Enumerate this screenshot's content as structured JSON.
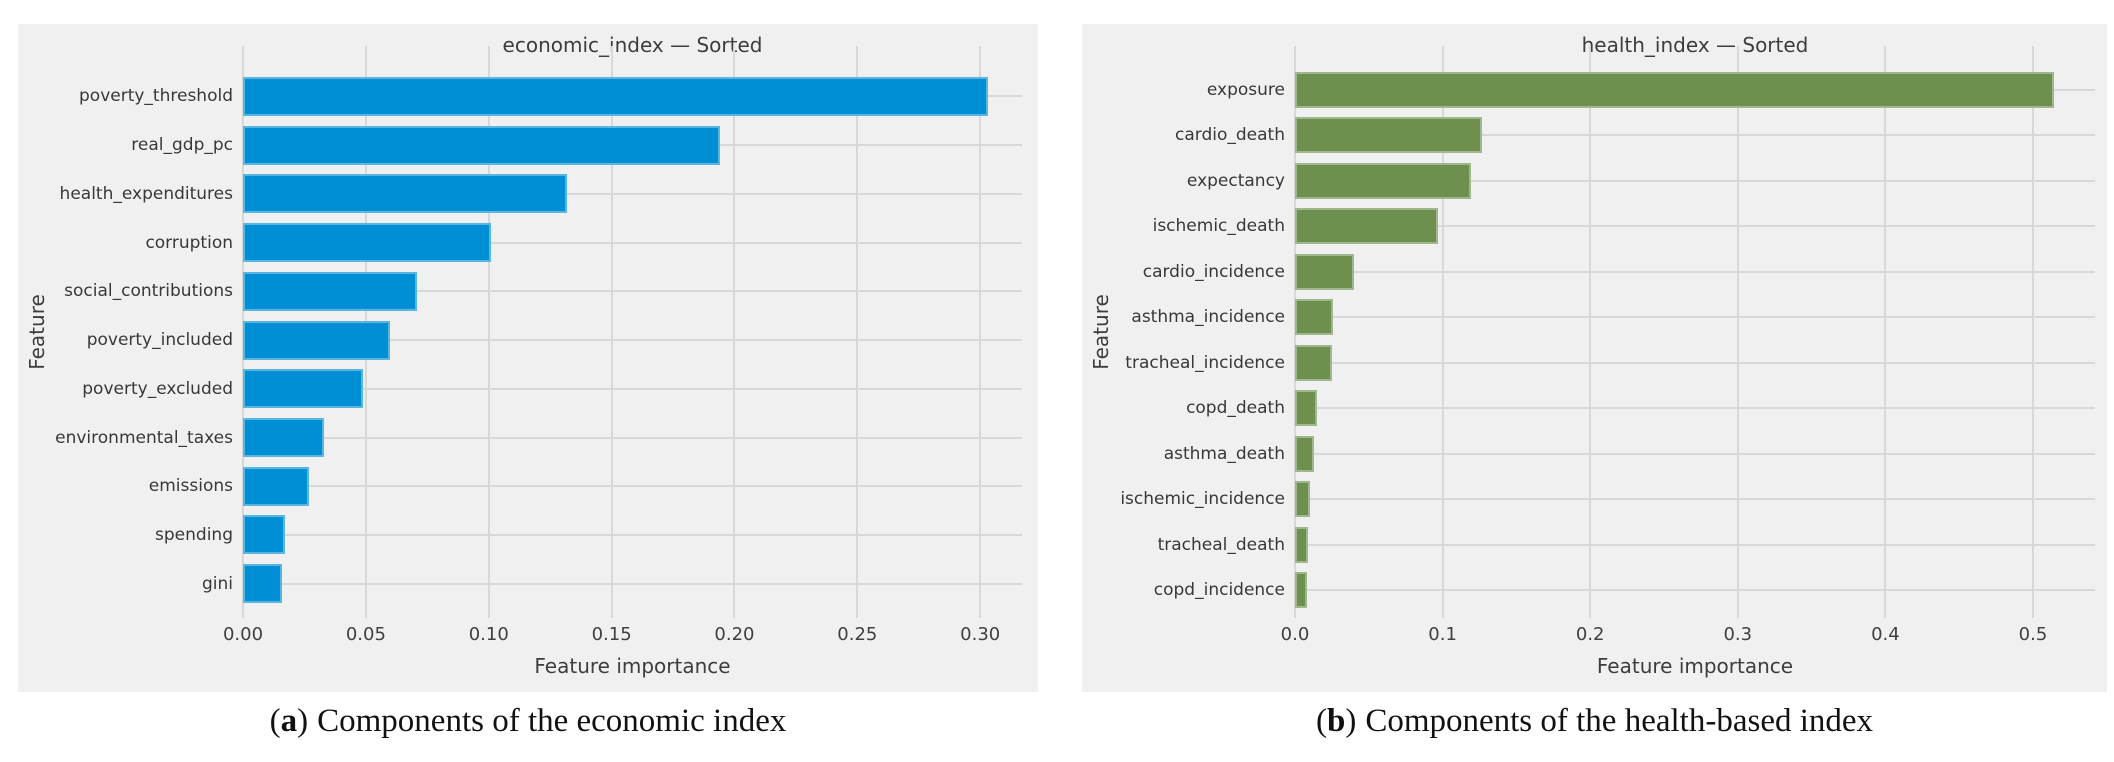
{
  "chart_data": [
    {
      "type": "bar",
      "orientation": "horizontal",
      "title": "economic_index — Sorted",
      "xlabel": "Feature importance",
      "ylabel": "Feature",
      "categories": [
        "poverty_threshold",
        "real_gdp_pc",
        "health_expenditures",
        "corruption",
        "social_contributions",
        "poverty_included",
        "poverty_excluded",
        "environmental_taxes",
        "emissions",
        "spending",
        "gini"
      ],
      "values": [
        0.303,
        0.194,
        0.132,
        0.101,
        0.071,
        0.06,
        0.049,
        0.033,
        0.027,
        0.017,
        0.016
      ],
      "xticks": [
        0.0,
        0.05,
        0.1,
        0.15,
        0.2,
        0.25,
        0.3
      ],
      "xtick_labels": [
        "0.00",
        "0.05",
        "0.10",
        "0.15",
        "0.20",
        "0.25",
        "0.30"
      ],
      "xlim": [
        0,
        0.317
      ],
      "bar_color": "#008fd5",
      "panel_bg": "#f0f0f0",
      "grid_color": "#d8d8d8",
      "grid": "on",
      "legend": "none"
    },
    {
      "type": "bar",
      "orientation": "horizontal",
      "title": "health_index — Sorted",
      "xlabel": "Feature importance",
      "ylabel": "Feature",
      "categories": [
        "exposure",
        "cardio_death",
        "expectancy",
        "ischemic_death",
        "cardio_incidence",
        "asthma_incidence",
        "tracheal_incidence",
        "copd_death",
        "asthma_death",
        "ischemic_incidence",
        "tracheal_death",
        "copd_incidence"
      ],
      "values": [
        0.514,
        0.127,
        0.119,
        0.097,
        0.04,
        0.026,
        0.025,
        0.015,
        0.013,
        0.01,
        0.009,
        0.008
      ],
      "xticks": [
        0.0,
        0.1,
        0.2,
        0.3,
        0.4,
        0.5
      ],
      "xtick_labels": [
        "0.0",
        "0.1",
        "0.2",
        "0.3",
        "0.4",
        "0.5"
      ],
      "xlim": [
        0,
        0.542
      ],
      "bar_color": "#6d904f",
      "panel_bg": "#f0f0f0",
      "grid_color": "#d8d8d8",
      "grid": "on",
      "legend": "none"
    }
  ],
  "captions": [
    {
      "pre": "(",
      "marker": "a",
      "post": ")",
      "text": "Components of the economic index"
    },
    {
      "pre": "(",
      "marker": "b",
      "post": ")",
      "text": "Components of the health-based index"
    }
  ]
}
